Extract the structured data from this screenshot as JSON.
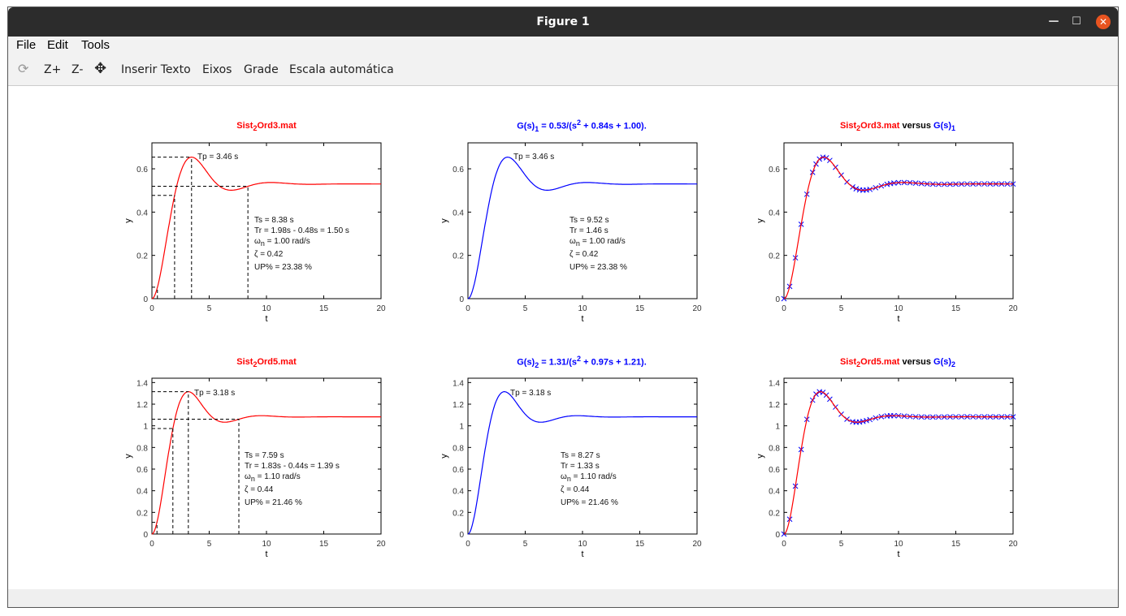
{
  "window": {
    "title": "Figure 1"
  },
  "menu": {
    "file": "File",
    "edit": "Edit",
    "tools": "Tools"
  },
  "toolbar": {
    "zoom_in": "Z+",
    "zoom_out": "Z-",
    "insert_text": "Inserir Texto",
    "axes": "Eixos",
    "grid": "Grade",
    "autoscale": "Escala automática"
  },
  "icons": {
    "rotate": "rotate-icon",
    "pan": "pan-move-icon"
  },
  "colors": {
    "data": "#ff0000",
    "model": "#0000ff"
  },
  "titles": [
    {
      "a": "Sist",
      "sub": "2",
      "b": "Ord3.mat"
    },
    {
      "a": "G(s)",
      "sub": "1",
      "b": " = 0.53/(s",
      "sup": "2",
      "c": " + 0.84s + 1.00)."
    },
    {
      "a": "Sist",
      "sub": "2",
      "b": "Ord3.mat",
      "vs": " versus ",
      "c": "G(s)",
      "sub2": "1"
    },
    {
      "a": "Sist",
      "sub": "2",
      "b": "Ord5.mat"
    },
    {
      "a": "G(s)",
      "sub": "2",
      "b": " = 1.31/(s",
      "sup": "2",
      "c": " + 0.97s + 1.21)."
    },
    {
      "a": "Sist",
      "sub": "2",
      "b": "Ord5.mat",
      "vs": " versus ",
      "c": "G(s)",
      "sub2": "2"
    }
  ],
  "annotations": [
    {
      "tp": "Tp = 3.46 s",
      "ts": "Ts = 8.38 s",
      "tr": "Tr = 1.98s - 0.48s = 1.50 s",
      "wn_pre": "ω",
      "wn_sub": "n",
      "wn_post": " =  1.00 rad/s",
      "zeta": "ζ = 0.42",
      "up": "UP% = 23.38 %"
    },
    {
      "tp": "Tp = 3.46 s",
      "ts": "Ts = 9.52 s",
      "tr": "Tr = 1.46 s",
      "wn_pre": "ω",
      "wn_sub": "n",
      "wn_post": " = 1.00 rad/s",
      "zeta": "ζ = 0.42",
      "up": "UP% = 23.38 %"
    },
    {
      "tp": "Tp = 3.18 s",
      "ts": "Ts = 7.59 s",
      "tr": "Tr = 1.83s - 0.44s = 1.39 s",
      "wn_pre": "ω",
      "wn_sub": "n",
      "wn_post": " = 1.10 rad/s",
      "zeta": "ζ = 0.44",
      "up": "UP% = 21.46 %"
    },
    {
      "tp": "Tp = 3.18 s",
      "ts": "Ts = 8.27 s",
      "tr": "Tr = 1.33 s",
      "wn_pre": "ω",
      "wn_sub": "n",
      "wn_post": " = 1.10 rad/s",
      "zeta": "ζ = 0.44",
      "up": "UP% = 21.46 %"
    }
  ],
  "chart_data": [
    {
      "type": "line",
      "xlabel": "t",
      "ylabel": "y",
      "xlim": [
        0,
        20
      ],
      "ylim": [
        0,
        0.72
      ],
      "xticks": [
        0,
        5,
        10,
        15,
        20
      ],
      "yticks": [
        0,
        0.2,
        0.4,
        0.6
      ],
      "series": [
        {
          "color": "#ff0000",
          "K": 0.53,
          "zeta": 0.42,
          "wn": 1.0
        }
      ],
      "markers": {
        "tp": 3.46,
        "tr": [
          0.48,
          1.98
        ],
        "ts": 8.38
      }
    },
    {
      "type": "line",
      "xlabel": "t",
      "ylabel": "y",
      "xlim": [
        0,
        20
      ],
      "ylim": [
        0,
        0.72
      ],
      "xticks": [
        0,
        5,
        10,
        15,
        20
      ],
      "yticks": [
        0,
        0.2,
        0.4,
        0.6
      ],
      "series": [
        {
          "color": "#0000ff",
          "K": 0.53,
          "zeta": 0.42,
          "wn": 1.0
        }
      ]
    },
    {
      "type": "line",
      "xlabel": "t",
      "ylabel": "y",
      "xlim": [
        0,
        20
      ],
      "ylim": [
        0,
        0.72
      ],
      "xticks": [
        0,
        5,
        10,
        15,
        20
      ],
      "yticks": [
        0,
        0.2,
        0.4,
        0.6
      ],
      "series": [
        {
          "color": "#0000ff",
          "K": 0.53,
          "zeta": 0.42,
          "wn": 1.0,
          "style": "x"
        },
        {
          "color": "#ff0000",
          "K": 0.53,
          "zeta": 0.42,
          "wn": 1.0
        }
      ]
    },
    {
      "type": "line",
      "xlabel": "t",
      "ylabel": "y",
      "xlim": [
        0,
        20
      ],
      "ylim": [
        0,
        1.44
      ],
      "xticks": [
        0,
        5,
        10,
        15,
        20
      ],
      "yticks": [
        0,
        0.2,
        0.4,
        0.6,
        0.8,
        1,
        1.2,
        1.4
      ],
      "series": [
        {
          "color": "#ff0000",
          "K": 1.083,
          "zeta": 0.44,
          "wn": 1.1
        }
      ],
      "markers": {
        "tp": 3.18,
        "tr": [
          0.44,
          1.83
        ],
        "ts": 7.59
      }
    },
    {
      "type": "line",
      "xlabel": "t",
      "ylabel": "y",
      "xlim": [
        0,
        20
      ],
      "ylim": [
        0,
        1.44
      ],
      "xticks": [
        0,
        5,
        10,
        15,
        20
      ],
      "yticks": [
        0,
        0.2,
        0.4,
        0.6,
        0.8,
        1,
        1.2,
        1.4
      ],
      "series": [
        {
          "color": "#0000ff",
          "K": 1.083,
          "zeta": 0.44,
          "wn": 1.1
        }
      ]
    },
    {
      "type": "line",
      "xlabel": "t",
      "ylabel": "y",
      "xlim": [
        0,
        20
      ],
      "ylim": [
        0,
        1.44
      ],
      "xticks": [
        0,
        5,
        10,
        15,
        20
      ],
      "yticks": [
        0,
        0.2,
        0.4,
        0.6,
        0.8,
        1,
        1.2,
        1.4
      ],
      "series": [
        {
          "color": "#0000ff",
          "K": 1.083,
          "zeta": 0.44,
          "wn": 1.1,
          "style": "x"
        },
        {
          "color": "#ff0000",
          "K": 1.083,
          "zeta": 0.44,
          "wn": 1.1
        }
      ]
    }
  ],
  "marker_t": [
    0,
    0.5,
    1,
    1.5,
    2,
    2.5,
    2.8,
    3.1,
    3.4,
    3.7,
    4,
    4.5,
    5,
    5.5,
    6,
    6.3,
    6.6,
    6.9,
    7.2,
    7.5,
    8,
    8.5,
    9,
    9.3,
    9.6,
    10,
    10.5,
    11,
    11.5,
    12,
    12.5,
    13,
    13.5,
    14,
    14.5,
    15,
    15.5,
    16,
    16.5,
    17,
    17.5,
    18,
    18.5,
    19,
    19.5,
    20
  ]
}
